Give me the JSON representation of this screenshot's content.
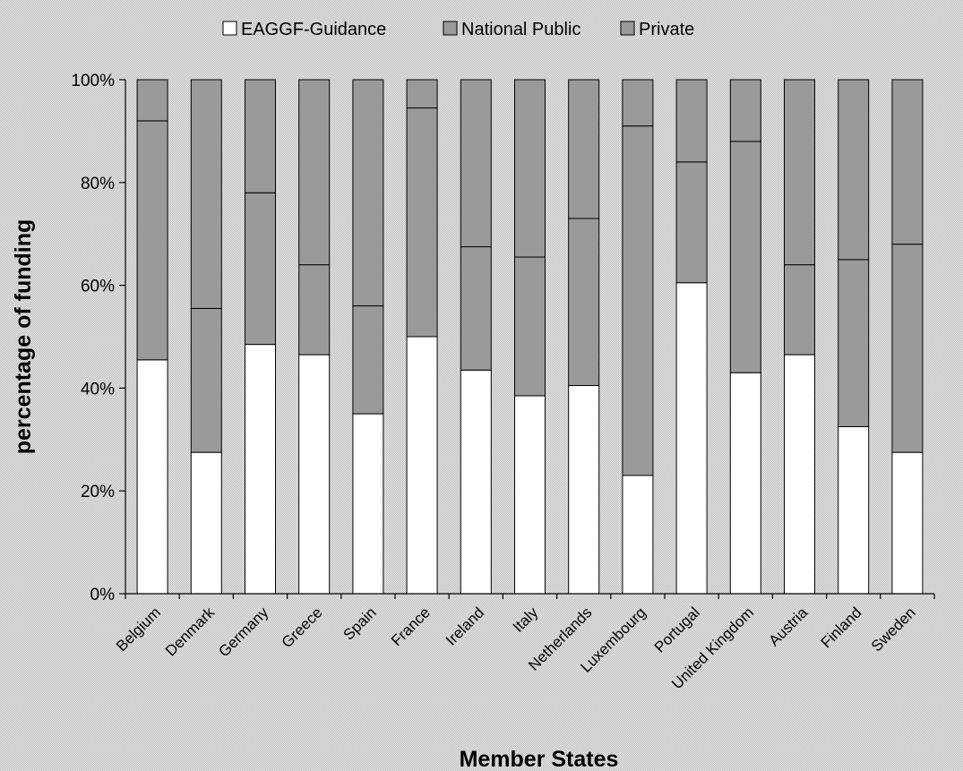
{
  "chart_data": {
    "type": "bar",
    "stacked": true,
    "percent": true,
    "categories": [
      "Belgium",
      "Denmark",
      "Germany",
      "Greece",
      "Spain",
      "France",
      "Ireland",
      "Italy",
      "Netherlands",
      "Luxembourg",
      "Portugal",
      "United Kingdom",
      "Austria",
      "Finland",
      "Sweden"
    ],
    "series": [
      {
        "name": "EAGGF-Guidance",
        "color": "#ffffff",
        "values": [
          45.5,
          27.5,
          48.5,
          46.5,
          35,
          50,
          43.5,
          38.5,
          40.5,
          23,
          60.5,
          43,
          46.5,
          32.5,
          27.5
        ]
      },
      {
        "name": "National Public",
        "color": "#9a9a9a",
        "values": [
          46.5,
          28,
          29.5,
          17.5,
          21,
          44.5,
          24,
          27,
          32.5,
          68,
          23.5,
          45,
          17.5,
          32.5,
          40.5
        ]
      },
      {
        "name": "Private",
        "color": "#9a9a9a",
        "values": [
          8,
          44.5,
          22,
          36,
          44,
          5.5,
          32.5,
          34.5,
          27,
          9,
          16,
          12,
          36,
          35,
          32
        ]
      }
    ],
    "xlabel": "Member States",
    "ylabel": "percentage of funding",
    "ylim": [
      0,
      100
    ],
    "yticks": [
      "0%",
      "20%",
      "40%",
      "60%",
      "80%",
      "100%"
    ],
    "grid": false,
    "legend_position": "top"
  }
}
